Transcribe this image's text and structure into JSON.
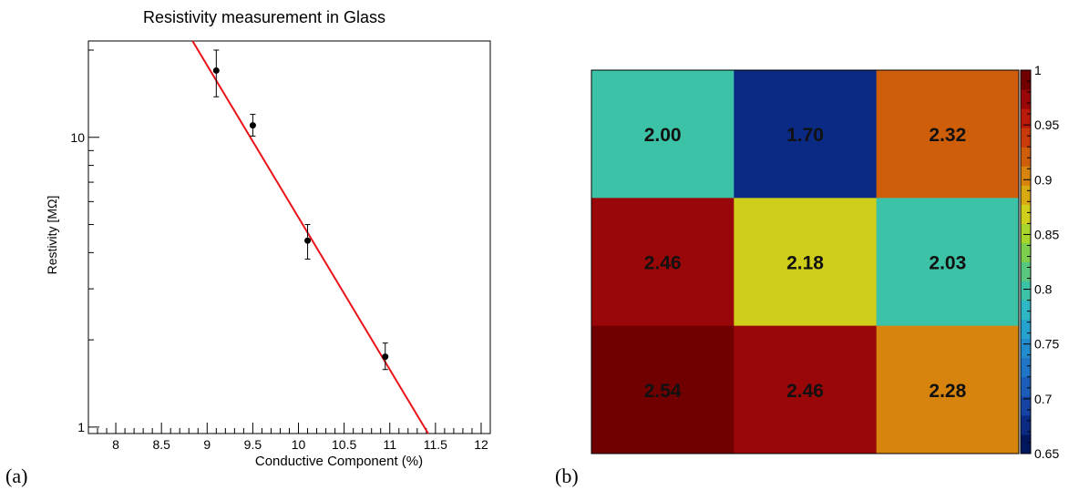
{
  "panel_labels": [
    "(a)",
    "(b)"
  ],
  "chart_data": [
    {
      "type": "scatter",
      "title": "Resistivity measurement in Glass",
      "xlabel": "Conductive Component (%)",
      "ylabel": "Restivity [MΩ]",
      "xlim": [
        7.7,
        12.1
      ],
      "ylim": [
        0.95,
        21.5
      ],
      "log_y": true,
      "x_ticks": [
        8,
        8.5,
        9,
        9.5,
        10,
        10.5,
        11,
        11.5,
        12
      ],
      "x_tick_labels": [
        "8",
        "8.5",
        "9",
        "9.5",
        "10",
        "10.5",
        "11",
        "11.5",
        "12"
      ],
      "y_ticks": [
        1,
        10
      ],
      "y_tick_labels": [
        "1",
        "10"
      ],
      "grid": false,
      "series": [
        {
          "x": [
            9.1,
            9.5,
            10.1,
            10.95
          ],
          "y": [
            17.0,
            11.0,
            4.4,
            1.75
          ],
          "y_err_low": [
            3.2,
            0.9,
            0.6,
            0.17
          ],
          "y_err_high": [
            3.0,
            1.0,
            0.6,
            0.2
          ],
          "color": "#000000"
        }
      ],
      "fit_line": {
        "x": [
          8.84,
          11.42
        ],
        "y": [
          21.5,
          0.95
        ],
        "color": "#e8131a"
      }
    },
    {
      "type": "heatmap",
      "rows": 3,
      "cols": 3,
      "labels": [
        [
          "2.00",
          "1.70",
          "2.32"
        ],
        [
          "2.46",
          "2.18",
          "2.03"
        ],
        [
          "2.54",
          "2.46",
          "2.28"
        ]
      ],
      "values": [
        [
          0.79,
          0.67,
          0.915
        ],
        [
          0.97,
          0.86,
          0.8
        ],
        [
          0.99,
          0.97,
          0.9
        ]
      ],
      "zlim": [
        0.65,
        1.0
      ],
      "colorbar_tick_labels": [
        "1",
        "0.95",
        "0.9",
        "0.85",
        "0.8",
        "0.75",
        "0.7",
        "0.65"
      ],
      "colorbar_ticks": [
        1.0,
        0.95,
        0.9,
        0.85,
        0.8,
        0.75,
        0.7,
        0.65
      ],
      "palette": [
        "#00175e",
        "#0a2a84",
        "#1543a3",
        "#1c5db9",
        "#2075c6",
        "#238ccd",
        "#25a2cf",
        "#2eb7c5",
        "#3cc2a6",
        "#57c87d",
        "#7ccf4c",
        "#a7d52c",
        "#cfce1b",
        "#d9a912",
        "#d6840d",
        "#cf5e0b",
        "#c93b0a",
        "#bb1909",
        "#9a0708",
        "#700000"
      ]
    }
  ]
}
